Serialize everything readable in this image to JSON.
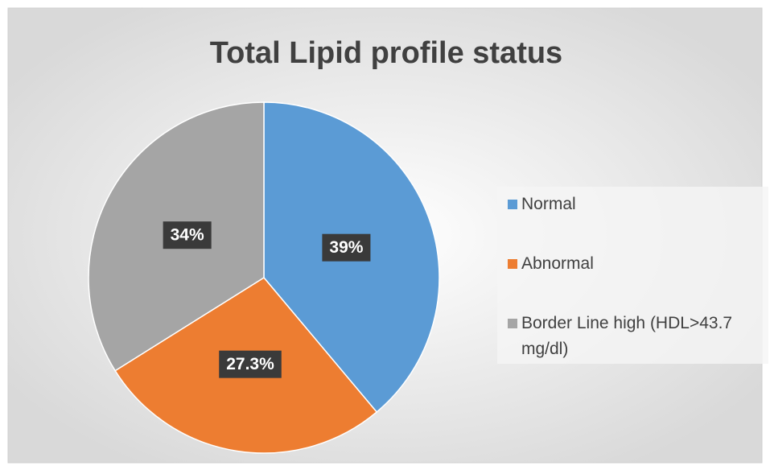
{
  "chart_data": {
    "type": "pie",
    "title": "Total Lipid profile status",
    "categories": [
      "Normal",
      "Abnormal",
      "Border Line high (HDL>43.7 mg/dl)"
    ],
    "values": [
      39,
      27.3,
      34
    ],
    "value_labels": [
      "39%",
      "27.3%",
      "34%"
    ],
    "colors": [
      "#5b9bd5",
      "#ed7d31",
      "#a5a5a5"
    ],
    "legend": "right"
  }
}
